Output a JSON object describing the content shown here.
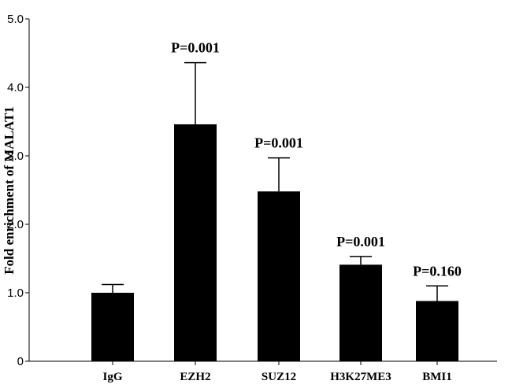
{
  "chart_data": {
    "type": "bar",
    "title": "",
    "xlabel": "",
    "ylabel": "Fold enrichment of MALAT1",
    "ylim": [
      0,
      5.0
    ],
    "yticks": [
      "0",
      "1.0",
      "2.0",
      "3.0",
      "4.0",
      "5.0"
    ],
    "categories": [
      "IgG",
      "EZH2",
      "SUZ12",
      "H3K27ME3",
      "BMI1"
    ],
    "values": [
      1.0,
      3.46,
      2.48,
      1.41,
      0.88
    ],
    "error_upper": [
      1.12,
      4.36,
      2.97,
      1.53,
      1.1
    ],
    "annotations": [
      "",
      "P=0.001",
      "P=0.001",
      "P=0.001",
      "P=0.160"
    ],
    "bar_color": "#000000",
    "grid": false,
    "legend": "none"
  }
}
